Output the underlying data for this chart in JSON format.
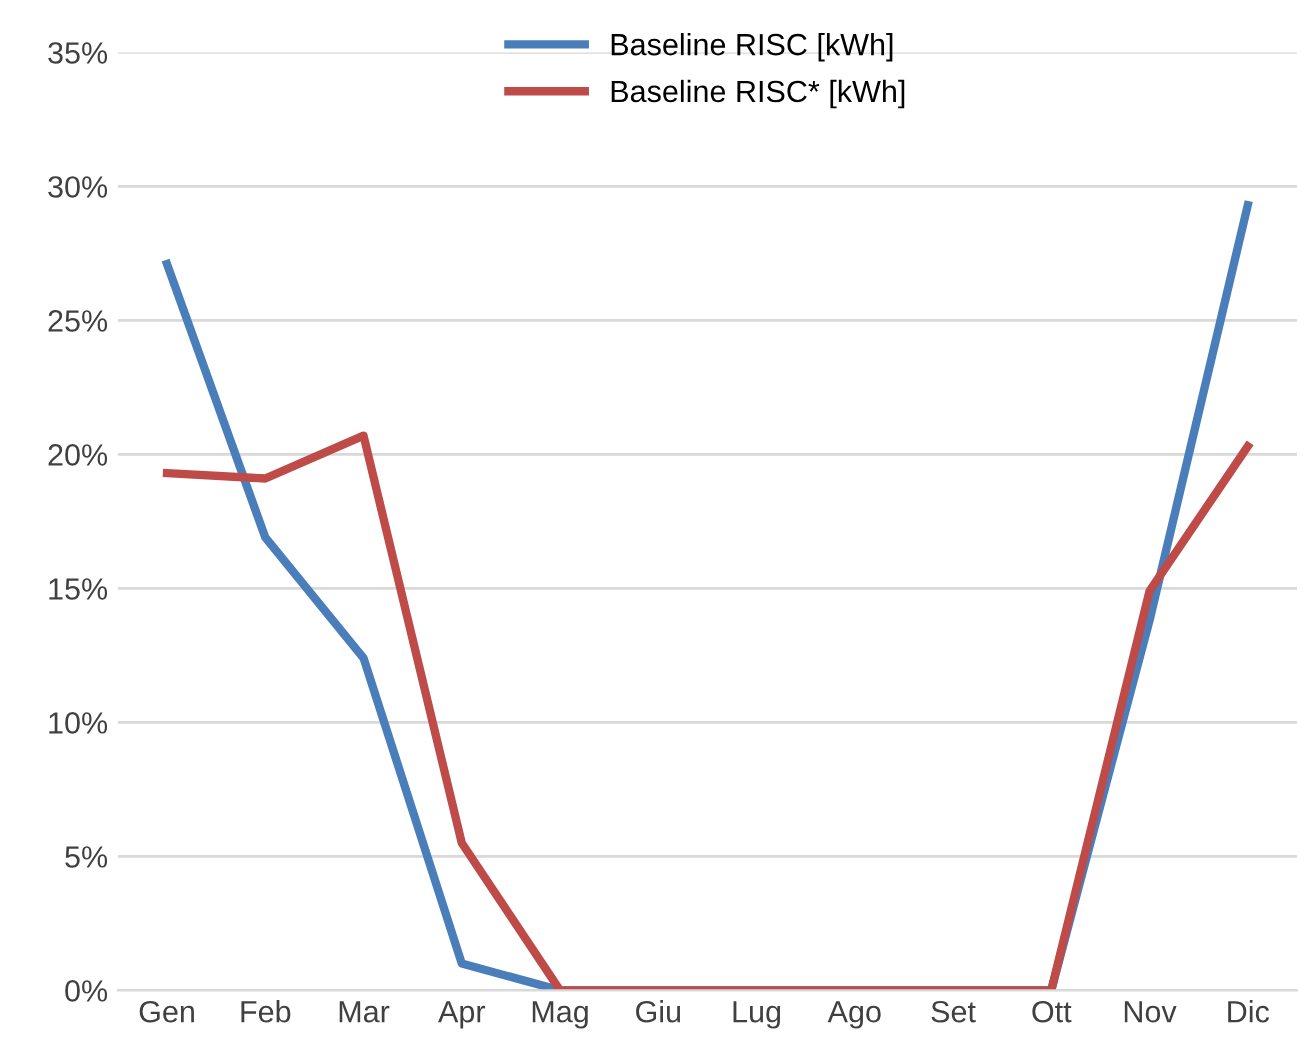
{
  "chart_data": {
    "type": "line",
    "categories": [
      "Gen",
      "Feb",
      "Mar",
      "Apr",
      "Mag",
      "Giu",
      "Lug",
      "Ago",
      "Set",
      "Ott",
      "Nov",
      "Dic"
    ],
    "series": [
      {
        "name": "Baseline RISC [kWh]",
        "color": "#4a7ebb",
        "values": [
          27.1,
          16.9,
          12.4,
          1.0,
          0,
          0,
          0,
          0,
          0,
          0,
          13.8,
          29.3
        ]
      },
      {
        "name": "Baseline RISC* [kWh]",
        "color": "#be4b48",
        "values": [
          19.3,
          19.1,
          20.7,
          5.5,
          0,
          0,
          0,
          0,
          0,
          0,
          14.9,
          20.3
        ]
      }
    ],
    "ylim": [
      0,
      35
    ],
    "yticks": [
      {
        "value": 0,
        "label": "0%"
      },
      {
        "value": 5,
        "label": "5%"
      },
      {
        "value": 10,
        "label": "10%"
      },
      {
        "value": 15,
        "label": "15%"
      },
      {
        "value": 20,
        "label": "20%"
      },
      {
        "value": 25,
        "label": "25%"
      },
      {
        "value": 30,
        "label": "30%"
      },
      {
        "value": 35,
        "label": "35%"
      }
    ],
    "grid": "y",
    "legend": "top",
    "marker": "none",
    "line_style": "solid"
  }
}
